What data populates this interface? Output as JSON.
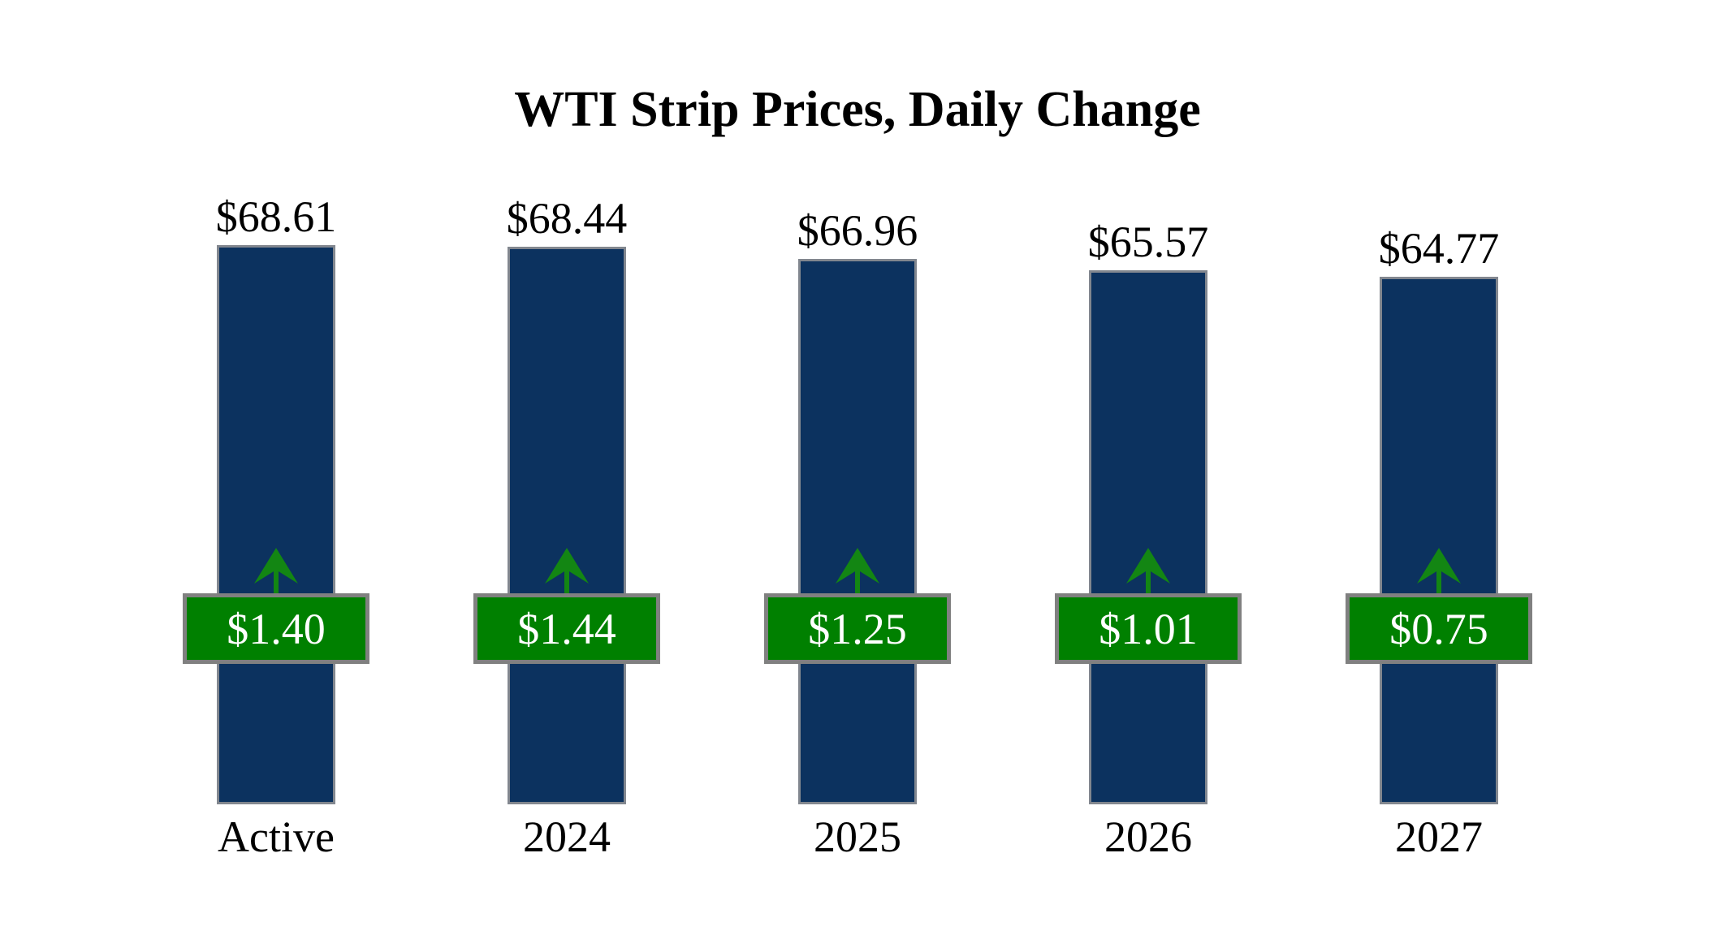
{
  "page": {
    "background": "#ffffff"
  },
  "chart_data": {
    "type": "bar",
    "title": "WTI Strip Prices, Daily Change",
    "categories": [
      "Active",
      "2024",
      "2025",
      "2026",
      "2027"
    ],
    "values": [
      68.61,
      68.44,
      66.96,
      65.57,
      64.77
    ],
    "value_labels": [
      "$68.61",
      "$68.44",
      "$66.96",
      "$65.57",
      "$64.77"
    ],
    "daily_changes": [
      1.4,
      1.44,
      1.25,
      1.01,
      0.75
    ],
    "change_labels": [
      "$1.40",
      "$1.44",
      "$1.25",
      "$1.01",
      "$0.75"
    ],
    "change_direction": "up",
    "xlabel": "",
    "ylabel": "",
    "ylim": [
      0,
      69
    ],
    "grid": false,
    "legend": "none",
    "axes_visible": false,
    "colors": {
      "background": "#ffffff",
      "text": "#000000",
      "bar": "#0c325f",
      "bar_border": "#82878f",
      "badge": "#008000",
      "badge_border": "#808080",
      "badge_text": "#ffffff",
      "arrow": "#138613"
    }
  }
}
